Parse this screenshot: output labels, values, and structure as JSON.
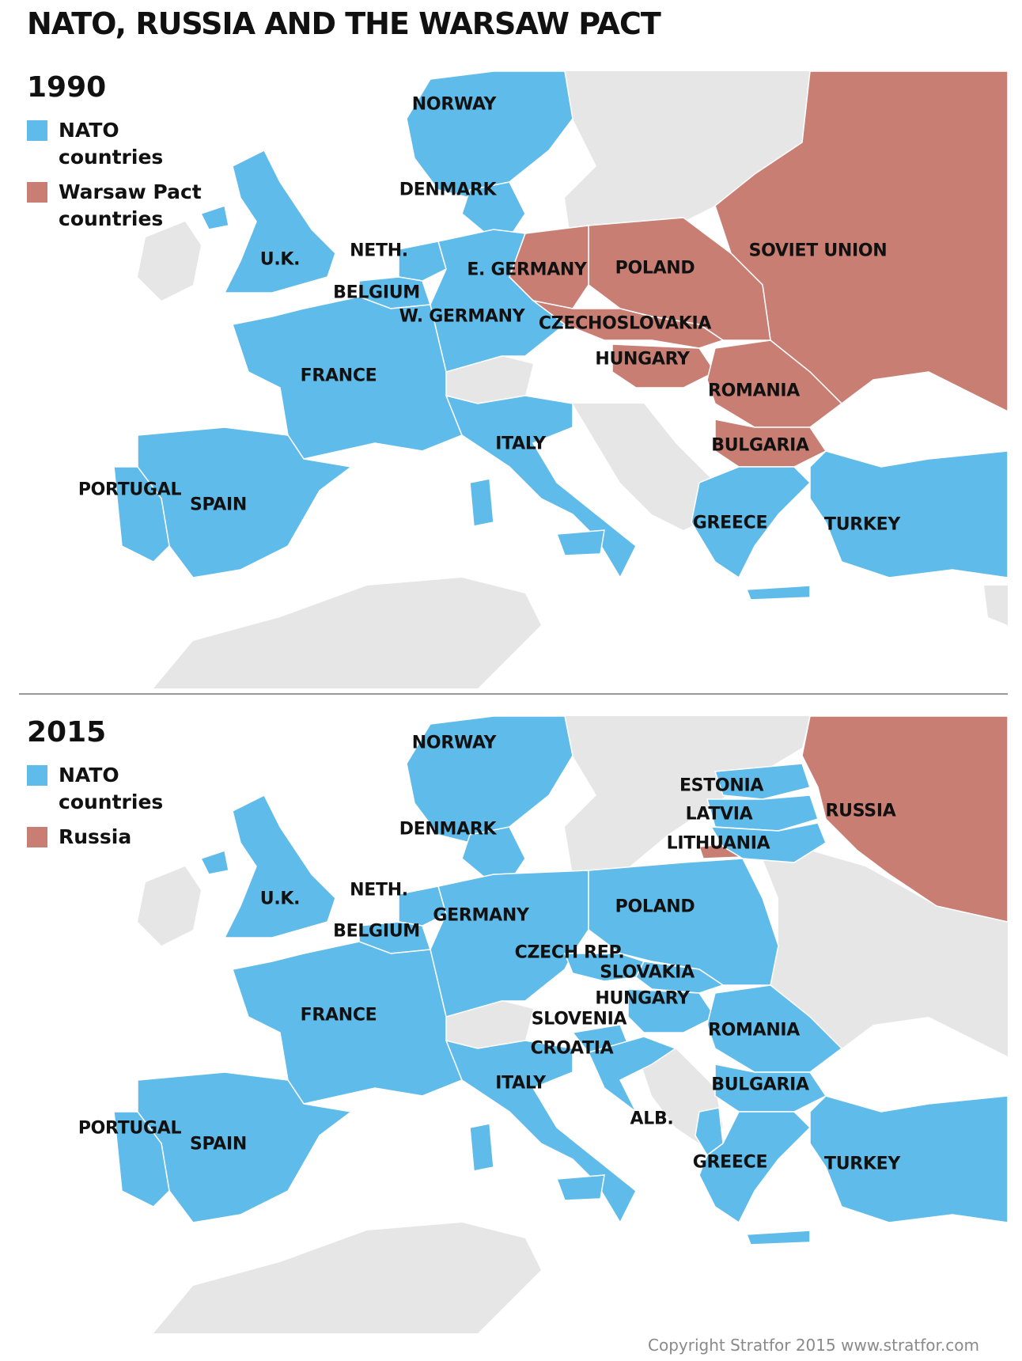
{
  "title": "NATO, RUSSIA AND THE WARSAW PACT",
  "colors": {
    "nato": "#5fbbe9",
    "warsaw": "#c97e73",
    "land": "#e6e6e6",
    "sea": "#ffffff",
    "border": "#ffffff"
  },
  "panel_1990": {
    "year": "1990",
    "legend": [
      {
        "label": "NATO countries",
        "color": "#5fbbe9"
      },
      {
        "label": "Warsaw Pact countries",
        "color": "#c97e73"
      }
    ],
    "labels": {
      "norway": "NORWAY",
      "denmark": "DENMARK",
      "uk": "U.K.",
      "neth": "NETH.",
      "belgium": "BELGIUM",
      "e_germany": "E. GERMANY",
      "w_germany": "W. GERMANY",
      "poland": "POLAND",
      "soviet_union": "SOVIET UNION",
      "czechoslovakia": "CZECHOSLOVAKIA",
      "hungary": "HUNGARY",
      "france": "FRANCE",
      "romania": "ROMANIA",
      "italy": "ITALY",
      "bulgaria": "BULGARIA",
      "portugal": "PORTUGAL",
      "spain": "SPAIN",
      "greece": "GREECE",
      "turkey": "TURKEY"
    }
  },
  "panel_2015": {
    "year": "2015",
    "legend": [
      {
        "label": "NATO countries",
        "color": "#5fbbe9"
      },
      {
        "label": "Russia",
        "color": "#c97e73"
      }
    ],
    "labels": {
      "norway": "NORWAY",
      "estonia": "ESTONIA",
      "latvia": "LATVIA",
      "russia": "RUSSIA",
      "denmark": "DENMARK",
      "lithuania": "LITHUANIA",
      "uk": "U.K.",
      "neth": "NETH.",
      "germany": "GERMANY",
      "poland": "POLAND",
      "belgium": "BELGIUM",
      "czech": "CZECH REP.",
      "slovakia": "SLOVAKIA",
      "hungary": "HUNGARY",
      "france": "FRANCE",
      "slovenia": "SLOVENIA",
      "romania": "ROMANIA",
      "croatia": "CROATIA",
      "italy": "ITALY",
      "bulgaria": "BULGARIA",
      "alb": "ALB.",
      "portugal": "PORTUGAL",
      "spain": "SPAIN",
      "greece": "GREECE",
      "turkey": "TURKEY"
    }
  },
  "copyright": "Copyright Stratfor 2015    www.stratfor.com"
}
